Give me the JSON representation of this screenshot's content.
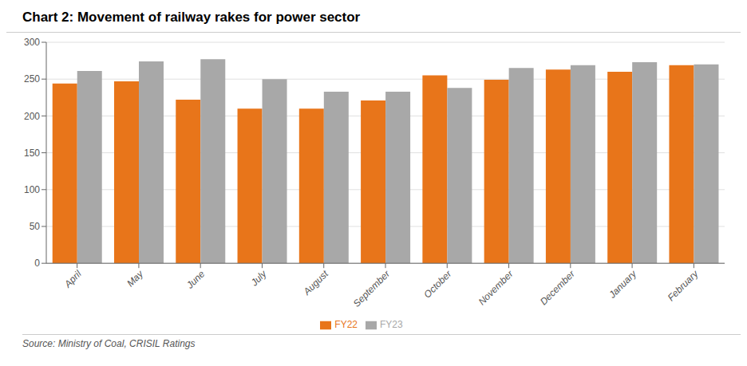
{
  "chart_data": {
    "type": "bar",
    "title": "Chart 2: Movement of railway rakes for power sector",
    "annotations": [
      "Source: Ministry of Coal, CRISIL Ratings"
    ],
    "categories": [
      "April",
      "May",
      "June",
      "July",
      "August",
      "September",
      "October",
      "November",
      "December",
      "January",
      "February"
    ],
    "series": [
      {
        "name": "FY22",
        "color": "#E8751A",
        "values": [
          244,
          247,
          222,
          210,
          210,
          221,
          255,
          249,
          263,
          260,
          269
        ]
      },
      {
        "name": "FY23",
        "color": "#A8A8A8",
        "values": [
          261,
          274,
          277,
          250,
          233,
          233,
          238,
          265,
          269,
          273,
          270
        ]
      }
    ],
    "ylim": [
      0,
      300
    ],
    "yticks": [
      0,
      50,
      100,
      150,
      200,
      250,
      300
    ],
    "grid": true,
    "legend": "bottom"
  }
}
